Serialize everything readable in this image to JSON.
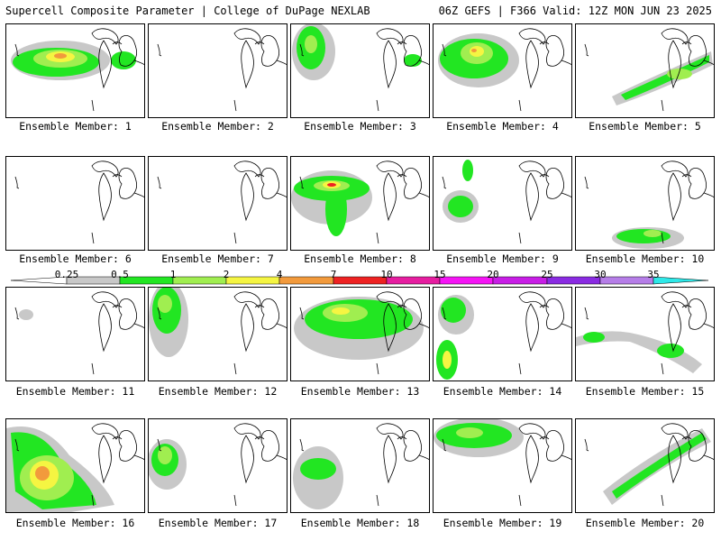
{
  "header": {
    "left": "Supercell Composite Parameter | College of DuPage NEXLAB",
    "right": "06Z GEFS | F366 Valid: 12Z MON JUN 23 2025"
  },
  "colorbar": {
    "ticks": [
      "0.25",
      "0.5",
      "1",
      "2",
      "4",
      "7",
      "10",
      "15",
      "20",
      "25",
      "30",
      "35"
    ],
    "colors": [
      "#ffffff",
      "#c8c8c8",
      "#22e622",
      "#a0ee50",
      "#f5f542",
      "#f29a3c",
      "#ee2222",
      "#e61ea0",
      "#f514f5",
      "#c81ee6",
      "#8a2be2",
      "#b67ee8",
      "#2ee8e8"
    ]
  },
  "members": [
    {
      "label": "Ensemble Member: 1"
    },
    {
      "label": "Ensemble Member: 2"
    },
    {
      "label": "Ensemble Member: 3"
    },
    {
      "label": "Ensemble Member: 4"
    },
    {
      "label": "Ensemble Member: 5"
    },
    {
      "label": "Ensemble Member: 6"
    },
    {
      "label": "Ensemble Member: 7"
    },
    {
      "label": "Ensemble Member: 8"
    },
    {
      "label": "Ensemble Member: 9"
    },
    {
      "label": "Ensemble Member: 10"
    },
    {
      "label": "Ensemble Member: 11"
    },
    {
      "label": "Ensemble Member: 12"
    },
    {
      "label": "Ensemble Member: 13"
    },
    {
      "label": "Ensemble Member: 14"
    },
    {
      "label": "Ensemble Member: 15"
    },
    {
      "label": "Ensemble Member: 16"
    },
    {
      "label": "Ensemble Member: 17"
    },
    {
      "label": "Ensemble Member: 18"
    },
    {
      "label": "Ensemble Member: 19"
    },
    {
      "label": "Ensemble Member: 20"
    }
  ]
}
